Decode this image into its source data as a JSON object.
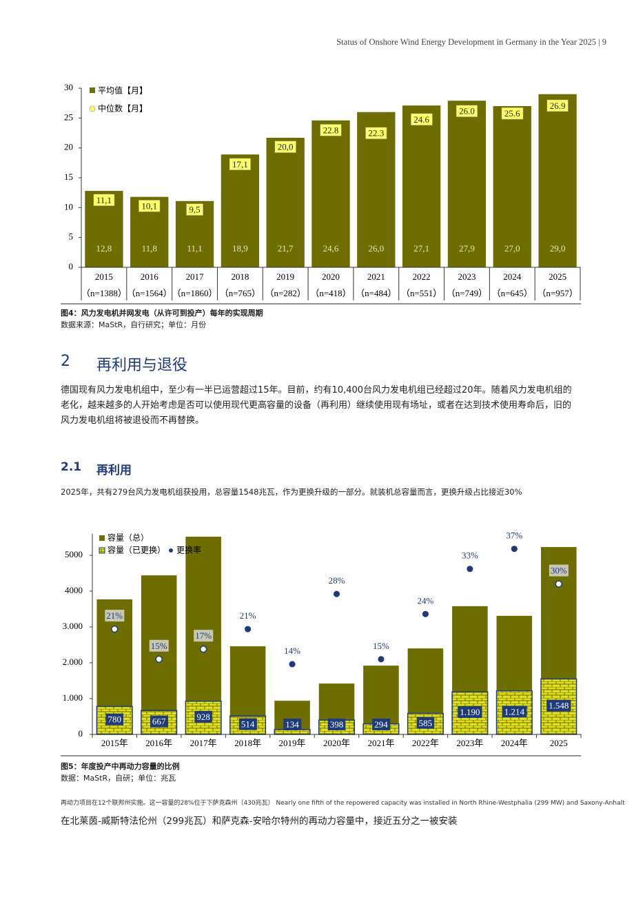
{
  "header": "Status of Onshore Wind Energy Development in Germany in the Year 2025 | 9",
  "figure4": {
    "caption": "图4：风力发电机并网发电（从许可到投产）每年的实现周期",
    "source": "数据来源：MaStR，自行研究；单位：月份"
  },
  "section": {
    "number": "2",
    "title": "再利用与退役"
  },
  "paragraph1": "德国现有风力发电机组中，至少有一半已运营超过15年。目前，约有10,400台风力发电机组已经超过20年。随着风力发电机组的老化，越来越多的人开始考虑是否可以使用现代更高容量的设备（再利用）继续使用现有场址，或者在达到技术使用寿命后，旧的风力发电机组将被退役而不再替换。",
  "subsection": {
    "number": "2.1",
    "title": "再利用"
  },
  "paragraph2": "2025年，共有279台风力发电机组获投用，总容量1548兆瓦，作为更换升级的一部分。就装机总容量而言，更换升级占比接近30%",
  "figure5": {
    "caption": "图5：年度投产中再动力容量的比例",
    "source": "数据：MaStR，自研；单位：兆瓦"
  },
  "footnote": "再动力项目在12个联邦州实施。这一容量的28%位于下萨克森州（430兆瓦） Nearly one fifth of the repowered capacity was installed in North Rhine-Westphalia (299 MW) and Saxony-Anhalt",
  "closing": "在北莱茵-威斯特法伦州（299兆瓦）和萨克森-安哈尔特州的再动力容量中，接近五分之一被安装",
  "chart_data": [
    {
      "type": "bar",
      "categories": [
        "2015",
        "2016",
        "2017",
        "2018",
        "2019",
        "2020",
        "2021",
        "2022",
        "2023",
        "2024",
        "2025"
      ],
      "sample_sizes": [
        "（n=1388）",
        "（n=1564）",
        "（n=1860）",
        "（n=765）",
        "（n=282）",
        "（n=418）",
        "（n=484）",
        "（n=551）",
        "（n=749）",
        "（n=645）",
        "（n=957）"
      ],
      "series": [
        {
          "name": "平均值【月】",
          "color": "#6e6e00",
          "values": [
            12.8,
            11.8,
            11.1,
            18.9,
            21.7,
            24.6,
            26.0,
            27.1,
            27.9,
            27.0,
            29.0
          ],
          "value_labels": [
            "12,8",
            "11,8",
            "11,1",
            "18,9",
            "21,7",
            "24,6",
            "26,0",
            "27,1",
            "27,9",
            "27,0",
            "29,0"
          ]
        },
        {
          "name": "中位数【月】",
          "color": "#ffff66",
          "values": [
            11.1,
            10.1,
            9.5,
            17.1,
            20.0,
            22.8,
            22.3,
            24.6,
            26.0,
            25.6,
            26.9
          ],
          "value_labels": [
            "11,1",
            "10,1",
            "9,5",
            "17,1",
            "20,0",
            "22.8",
            "22.3",
            "24.6",
            "26.0",
            "25.6",
            "26.9"
          ]
        }
      ],
      "ylim": [
        0,
        30
      ],
      "yticks": [
        0,
        5,
        10,
        15,
        20,
        25,
        30
      ]
    },
    {
      "type": "bar",
      "categories": [
        "2015年",
        "2016年",
        "2017年",
        "2018年",
        "2019年",
        "2020年",
        "2021年",
        "2022年",
        "2023年",
        "2024年",
        "2025"
      ],
      "series": [
        {
          "name": "容量（总）",
          "color": "#6e6e00",
          "values": [
            3770,
            4440,
            5520,
            2460,
            940,
            1420,
            1920,
            2400,
            3580,
            3310,
            5230
          ]
        },
        {
          "name": "容量（已更换）",
          "color": "#e0e020",
          "values": [
            780,
            667,
            928,
            514,
            134,
            398,
            294,
            585,
            1190,
            1214,
            1548
          ],
          "value_labels": [
            "780",
            "667",
            "928",
            "514",
            "134",
            "398",
            "294",
            "585",
            "1.190",
            "1.214",
            "1.548"
          ]
        },
        {
          "name": "更换率",
          "color": "#1f3b7a",
          "axis": "y2",
          "values": [
            21,
            15,
            17,
            21,
            14,
            28,
            15,
            24,
            33,
            37,
            30
          ],
          "value_labels": [
            "21%",
            "15%",
            "17%",
            "21%",
            "14%",
            "28%",
            "15%",
            "24%",
            "33%",
            "37%",
            "30%"
          ]
        }
      ],
      "ylim": [
        0,
        5600
      ],
      "yticks": [
        0,
        {
          "value": 1000,
          "label": "1.000"
        },
        {
          "value": 2000,
          "label": "2.000"
        },
        {
          "value": 3000,
          "label": "3.000"
        },
        4000,
        5000
      ],
      "y2lim": [
        0,
        40
      ]
    }
  ]
}
